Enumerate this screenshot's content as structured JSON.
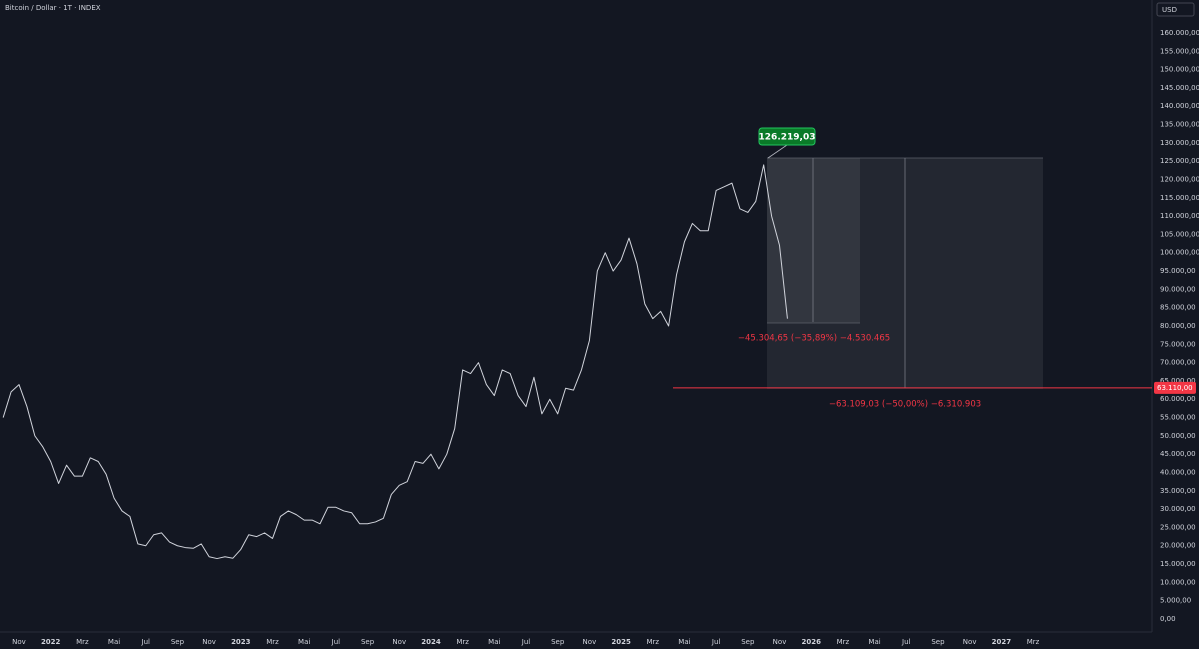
{
  "chart_data": {
    "type": "line",
    "title": "Bitcoin / Dollar · 1T · INDEX",
    "currency": "USD",
    "categories": [
      null,
      null,
      "Nov",
      null,
      null,
      null,
      "2022",
      null,
      null,
      null,
      "Mrz",
      null,
      null,
      null,
      "Mai",
      null,
      null,
      null,
      "Jul",
      null,
      null,
      null,
      "Sep",
      null,
      null,
      null,
      "Nov",
      null,
      null,
      null,
      "2023",
      null,
      null,
      null,
      "Mrz",
      null,
      null,
      null,
      "Mai",
      null,
      null,
      null,
      "Jul",
      null,
      null,
      null,
      "Sep",
      null,
      null,
      null,
      "Nov",
      null,
      null,
      null,
      "2024",
      null,
      null,
      null,
      "Mrz",
      null,
      null,
      null,
      "Mai",
      null,
      null,
      null,
      "Jul",
      null,
      null,
      null,
      "Sep",
      null,
      null,
      null,
      "Nov",
      null,
      null,
      null,
      "2025",
      null,
      null,
      null,
      "Mrz",
      null,
      null,
      null,
      "Mai",
      null,
      null,
      null,
      "Jul",
      null,
      null,
      null,
      "Sep",
      null,
      null,
      null,
      "Nov",
      null,
      null,
      null,
      "2026",
      null,
      null,
      null,
      "Mrz",
      null,
      null,
      null,
      "Mai",
      null,
      null,
      null,
      "Jul",
      null,
      null,
      null,
      "Sep",
      null,
      null,
      null,
      "Nov",
      null,
      null,
      null,
      "2027",
      null,
      null,
      null,
      "Mrz",
      null
    ],
    "values": [
      55000,
      62000,
      64000,
      58000,
      50000,
      47000,
      43000,
      37000,
      42000,
      39000,
      39000,
      44000,
      43000,
      39500,
      33000,
      29500,
      28000,
      20500,
      20000,
      23000,
      23500,
      21000,
      20000,
      19500,
      19300,
      20500,
      17000,
      16500,
      17000,
      16600,
      19000,
      23000,
      22500,
      23500,
      22000,
      28000,
      29500,
      28500,
      27000,
      27000,
      26000,
      30500,
      30500,
      29500,
      29000,
      26000,
      26000,
      26500,
      27500,
      34000,
      36500,
      37500,
      43000,
      42500,
      45000,
      41000,
      45000,
      52000,
      68000,
      67000,
      70000,
      64000,
      61000,
      68000,
      67000,
      61000,
      58000,
      66000,
      56000,
      60000,
      56000,
      63000,
      62500,
      68000,
      76000,
      95000,
      100000,
      95000,
      98000,
      104000,
      97000,
      86000,
      82000,
      84000,
      80000,
      94000,
      103000,
      108000,
      106000,
      106000,
      117000,
      118000,
      119000,
      112000,
      111000,
      114000,
      124000,
      110000,
      102000,
      82000,
      null,
      null,
      null,
      null,
      null,
      null,
      null,
      null,
      null,
      null,
      null,
      null,
      null,
      null,
      null,
      null,
      null,
      null,
      null,
      null,
      null,
      null,
      null,
      null,
      null,
      null,
      null,
      null,
      null,
      null,
      null,
      null
    ],
    "color": "#d1d4dc",
    "ylim": [
      -3550,
      169000
    ],
    "yticks": [
      {
        "value": 0,
        "label": "0,00"
      },
      {
        "value": 5000,
        "label": "5.000,00"
      },
      {
        "value": 10000,
        "label": "10.000,00"
      },
      {
        "value": 15000,
        "label": "15.000,00"
      },
      {
        "value": 20000,
        "label": "20.000,00"
      },
      {
        "value": 25000,
        "label": "25.000,00"
      },
      {
        "value": 30000,
        "label": "30.000,00"
      },
      {
        "value": 35000,
        "label": "35.000,00"
      },
      {
        "value": 40000,
        "label": "40.000,00"
      },
      {
        "value": 45000,
        "label": "45.000,00"
      },
      {
        "value": 50000,
        "label": "50.000,00"
      },
      {
        "value": 55000,
        "label": "55.000,00"
      },
      {
        "value": 60000,
        "label": "60.000,00"
      },
      {
        "value": 65000,
        "label": "65.000,00"
      },
      {
        "value": 70000,
        "label": "70.000,00"
      },
      {
        "value": 75000,
        "label": "75.000,00"
      },
      {
        "value": 80000,
        "label": "80.000,00"
      },
      {
        "value": 85000,
        "label": "85.000,00"
      },
      {
        "value": 90000,
        "label": "90.000,00"
      },
      {
        "value": 95000,
        "label": "95.000,00"
      },
      {
        "value": 100000,
        "label": "100.000,00"
      },
      {
        "value": 105000,
        "label": "105.000,00"
      },
      {
        "value": 110000,
        "label": "110.000,00"
      },
      {
        "value": 115000,
        "label": "115.000,00"
      },
      {
        "value": 120000,
        "label": "120.000,00"
      },
      {
        "value": 125000,
        "label": "125.000,00"
      },
      {
        "value": 130000,
        "label": "130.000,00"
      },
      {
        "value": 135000,
        "label": "135.000,00"
      },
      {
        "value": 140000,
        "label": "140.000,00"
      },
      {
        "value": 145000,
        "label": "145.000,00"
      },
      {
        "value": 150000,
        "label": "150.000,00"
      },
      {
        "value": 155000,
        "label": "155.000,00"
      },
      {
        "value": 160000,
        "label": "160.000,00"
      }
    ],
    "grid": false,
    "price_line": {
      "value": 63110,
      "label": "63.110,00",
      "color": "#f23645"
    },
    "annotations": [
      {
        "text": "126.219,03"
      },
      {
        "text": "−45.304,65 (−35,89%) −4.530.465"
      },
      {
        "text": "−63.109,03 (−50,00%) −6.310.903"
      }
    ]
  }
}
